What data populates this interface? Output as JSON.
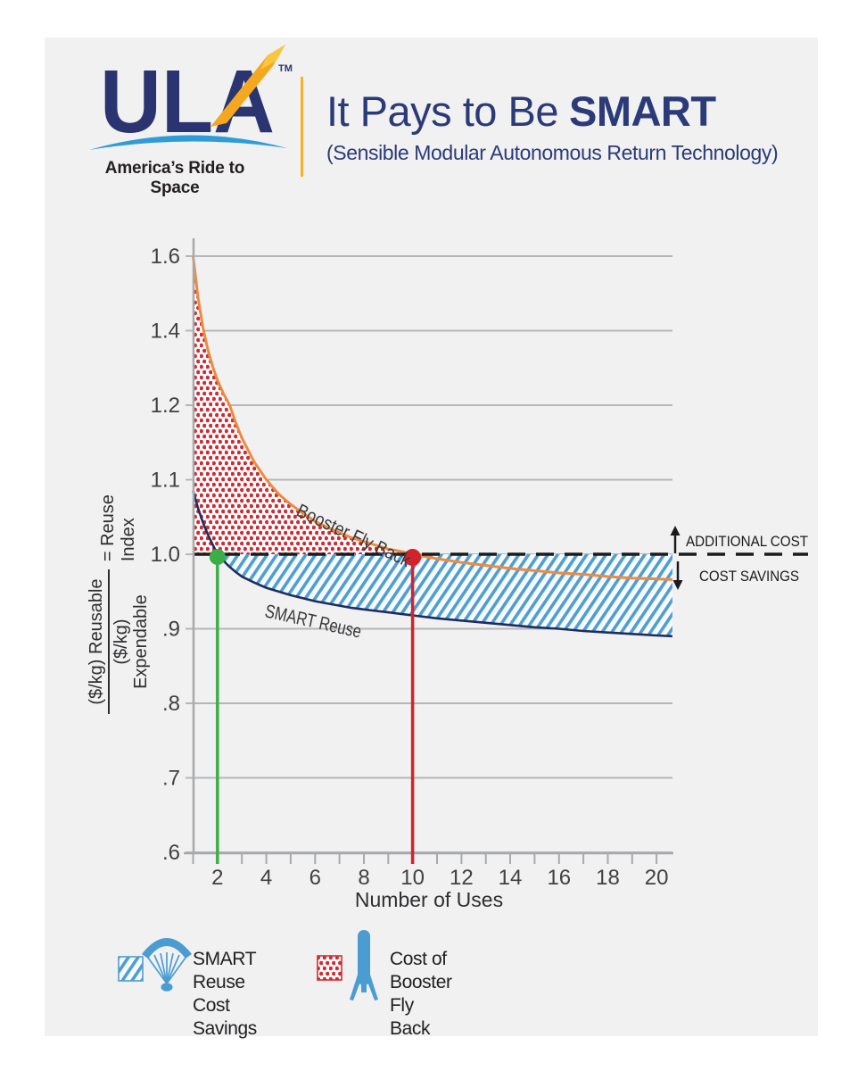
{
  "header": {
    "logo_text": "ULA",
    "logo_tm": "TM",
    "tagline": "America’s Ride to Space",
    "title_regular": "It Pays to Be",
    "title_bold": "SMART",
    "subtitle": "(Sensible Modular Autonomous Return Technology)"
  },
  "colors": {
    "card_bg": "#f1f1f2",
    "navy": "#2b3a78",
    "gold": "#f5b324",
    "logo_blue": "#2f9cd8",
    "orange_curve": "#ee8a3e",
    "navy_curve": "#1d2d5e",
    "red_dots": "#cf2d35",
    "red_marker": "#d2232a",
    "green_marker": "#3cae49",
    "hatch_blue": "#4f9ed3",
    "hatch_bg": "#f7fbfe",
    "gridline": "#b5b6b8",
    "axis": "#a7a9ac",
    "text_dark": "#1b1b1d"
  },
  "chart_data": {
    "type": "line",
    "xlabel": "Number of Uses",
    "ylabel_fraction_numerator": "($/kg) Reusable",
    "ylabel_fraction_denominator": "($/kg) Expendable",
    "ylabel_suffix": "= Reuse Index",
    "y_scale_note": "broken axis: 0.2 per division above 1.2, 0.1 per division below 1.2",
    "ylim": [
      0.6,
      1.6
    ],
    "xlim": [
      1,
      20.65
    ],
    "grid": true,
    "y_ticks": [
      {
        "value": 1.6,
        "label": "1.6"
      },
      {
        "value": 1.4,
        "label": "1.4"
      },
      {
        "value": 1.2,
        "label": "1.2"
      },
      {
        "value": 1.1,
        "label": "1.1"
      },
      {
        "value": 1.0,
        "label": "1.0"
      },
      {
        "value": 0.9,
        "label": ".9"
      },
      {
        "value": 0.8,
        "label": ".8"
      },
      {
        "value": 0.7,
        "label": ".7"
      },
      {
        "value": 0.6,
        "label": ".6"
      }
    ],
    "x_tick_labels": [
      2,
      4,
      6,
      8,
      10,
      12,
      14,
      16,
      18,
      20
    ],
    "x_minor_ticks": [
      1,
      2,
      3,
      4,
      5,
      6,
      7,
      8,
      9,
      10,
      11,
      12,
      13,
      14,
      15,
      16,
      17,
      18,
      19,
      20
    ],
    "series": [
      {
        "name": "Booster Fly Back",
        "color": "#ee8a3e",
        "points": [
          [
            1,
            1.6
          ],
          [
            1.2,
            1.489
          ],
          [
            1.4,
            1.41
          ],
          [
            1.6,
            1.35
          ],
          [
            1.8,
            1.304
          ],
          [
            2,
            1.267
          ],
          [
            2.25,
            1.23
          ],
          [
            2.5,
            1.2
          ],
          [
            2.75,
            1.176
          ],
          [
            3,
            1.156
          ],
          [
            3.5,
            1.124
          ],
          [
            4,
            1.1
          ],
          [
            4.5,
            1.081
          ],
          [
            5,
            1.067
          ],
          [
            5.5,
            1.055
          ],
          [
            6,
            1.044
          ],
          [
            6.5,
            1.036
          ],
          [
            7,
            1.029
          ],
          [
            7.5,
            1.022
          ],
          [
            8,
            1.017
          ],
          [
            8.5,
            1.012
          ],
          [
            9,
            1.007
          ],
          [
            9.5,
            1.004
          ],
          [
            10,
            1.0
          ],
          [
            11,
            0.994
          ],
          [
            12,
            0.989
          ],
          [
            13,
            0.985
          ],
          [
            14,
            0.981
          ],
          [
            15,
            0.978
          ],
          [
            16,
            0.975
          ],
          [
            17,
            0.973
          ],
          [
            18,
            0.97
          ],
          [
            19,
            0.968
          ],
          [
            20,
            0.967
          ],
          [
            20.65,
            0.966
          ]
        ]
      },
      {
        "name": "SMART Reuse",
        "color": "#1d2d5e",
        "points": [
          [
            1,
            1.085
          ],
          [
            1.2,
            1.062
          ],
          [
            1.4,
            1.043
          ],
          [
            1.6,
            1.027
          ],
          [
            1.8,
            1.013
          ],
          [
            2,
            1.0
          ],
          [
            2.25,
            0.991
          ],
          [
            2.5,
            0.983
          ],
          [
            2.75,
            0.976
          ],
          [
            3,
            0.97
          ],
          [
            3.5,
            0.962
          ],
          [
            4,
            0.955
          ],
          [
            4.5,
            0.95
          ],
          [
            5,
            0.945
          ],
          [
            5.5,
            0.941
          ],
          [
            6,
            0.937
          ],
          [
            6.5,
            0.934
          ],
          [
            7,
            0.931
          ],
          [
            7.5,
            0.928
          ],
          [
            8,
            0.926
          ],
          [
            8.5,
            0.924
          ],
          [
            9,
            0.922
          ],
          [
            9.5,
            0.92
          ],
          [
            10,
            0.918
          ],
          [
            11,
            0.914
          ],
          [
            12,
            0.911
          ],
          [
            13,
            0.908
          ],
          [
            14,
            0.905
          ],
          [
            15,
            0.902
          ],
          [
            16,
            0.9
          ],
          [
            17,
            0.897
          ],
          [
            18,
            0.895
          ],
          [
            19,
            0.893
          ],
          [
            20,
            0.891
          ],
          [
            20.65,
            0.89
          ]
        ]
      }
    ],
    "reference_line": {
      "y": 1.0,
      "style": "dashed"
    },
    "markers": [
      {
        "x": 2,
        "y": 1.0,
        "color": "#3cae49",
        "meaning": "SMART Reuse break-even"
      },
      {
        "x": 10,
        "y": 1.0,
        "color": "#d2232a",
        "meaning": "Booster Fly Back break-even"
      }
    ],
    "areas": [
      {
        "name": "Cost of Booster Fly Back",
        "fill": "red-dot-pattern",
        "between": "Booster Fly Back curve and y=1.0, x 1 to 10"
      },
      {
        "name": "SMART Reuse Cost Savings",
        "fill": "blue-hatch-pattern",
        "between": "y=1.0 and SMART Reuse curve, x 2 to 20.65"
      }
    ],
    "annotations": {
      "additional_cost": "ADDITIONAL COST",
      "cost_savings": "COST SAVINGS"
    }
  },
  "legend": {
    "items": [
      {
        "label": "SMART Reuse\nCost Savings",
        "swatch": "blue-hatch",
        "icon": "parachute"
      },
      {
        "label": "Cost of Booster\nFly Back",
        "swatch": "red-dots",
        "icon": "booster-rocket"
      }
    ]
  }
}
